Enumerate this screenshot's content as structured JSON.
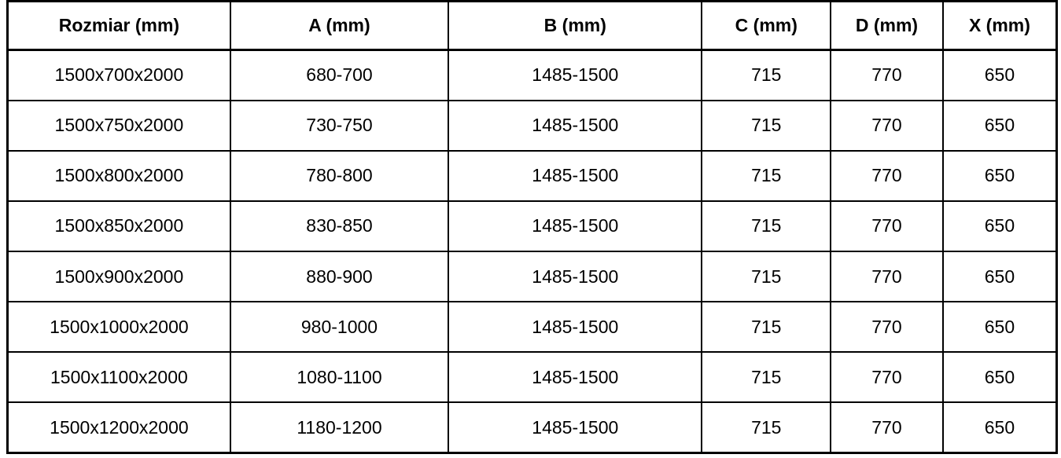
{
  "table": {
    "headers": [
      "Rozmiar (mm)",
      "A (mm)",
      "B (mm)",
      "C (mm)",
      "D (mm)",
      "X (mm)"
    ],
    "rows": [
      [
        "1500x700x2000",
        "680-700",
        "1485-1500",
        "715",
        "770",
        "650"
      ],
      [
        "1500x750x2000",
        "730-750",
        "1485-1500",
        "715",
        "770",
        "650"
      ],
      [
        "1500x800x2000",
        "780-800",
        "1485-1500",
        "715",
        "770",
        "650"
      ],
      [
        "1500x850x2000",
        "830-850",
        "1485-1500",
        "715",
        "770",
        "650"
      ],
      [
        "1500x900x2000",
        "880-900",
        "1485-1500",
        "715",
        "770",
        "650"
      ],
      [
        "1500x1000x2000",
        "980-1000",
        "1485-1500",
        "715",
        "770",
        "650"
      ],
      [
        "1500x1100x2000",
        "1080-1100",
        "1485-1500",
        "715",
        "770",
        "650"
      ],
      [
        "1500x1200x2000",
        "1180-1200",
        "1485-1500",
        "715",
        "770",
        "650"
      ]
    ]
  },
  "colors": {
    "border": "#000000",
    "text": "#000000",
    "background": "#ffffff"
  }
}
